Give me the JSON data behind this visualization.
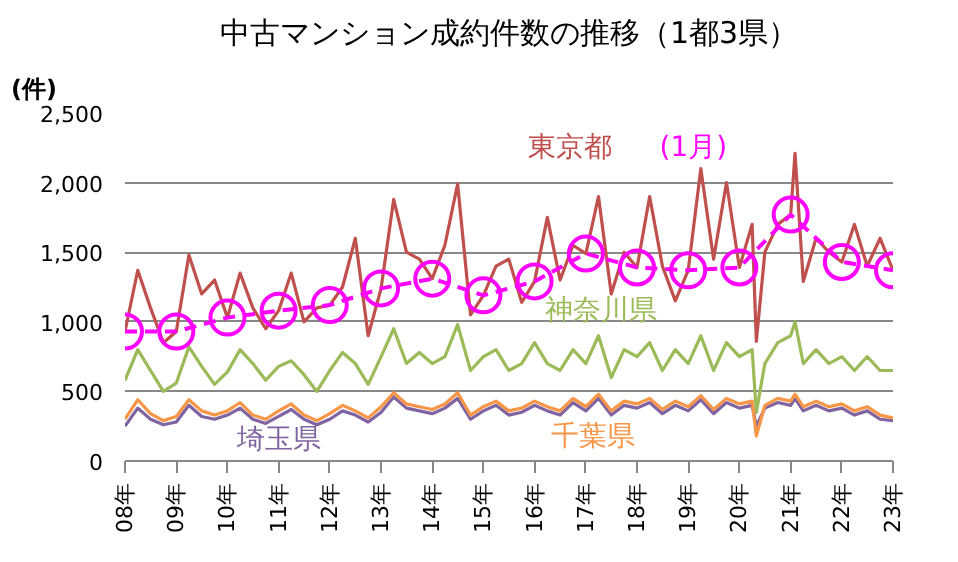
{
  "chart_data": {
    "type": "line",
    "title": "中古マンション成約件数の推移（1都3県）",
    "ylabel": "(件)",
    "x": [
      "2008-01",
      "2008-04",
      "2008-07",
      "2008-10",
      "2009-01",
      "2009-04",
      "2009-07",
      "2009-10",
      "2010-01",
      "2010-04",
      "2010-07",
      "2010-10",
      "2011-01",
      "2011-04",
      "2011-07",
      "2011-10",
      "2012-01",
      "2012-04",
      "2012-07",
      "2012-10",
      "2013-01",
      "2013-04",
      "2013-07",
      "2013-10",
      "2014-01",
      "2014-04",
      "2014-07",
      "2014-10",
      "2015-01",
      "2015-04",
      "2015-07",
      "2015-10",
      "2016-01",
      "2016-04",
      "2016-07",
      "2016-10",
      "2017-01",
      "2017-04",
      "2017-07",
      "2017-10",
      "2018-01",
      "2018-04",
      "2018-07",
      "2018-10",
      "2019-01",
      "2019-04",
      "2019-07",
      "2019-10",
      "2020-01",
      "2020-04",
      "2020-05",
      "2020-07",
      "2020-10",
      "2021-01",
      "2021-02",
      "2021-04",
      "2021-07",
      "2021-10",
      "2022-01",
      "2022-04",
      "2022-07",
      "2022-10",
      "2023-01"
    ],
    "series": [
      {
        "name": "東京都",
        "color": "#c0504d",
        "values": [
          930,
          1370,
          1100,
          850,
          930,
          1480,
          1200,
          1300,
          1030,
          1350,
          1100,
          950,
          1080,
          1350,
          1000,
          1100,
          1120,
          1250,
          1600,
          900,
          1240,
          1880,
          1500,
          1450,
          1310,
          1550,
          1990,
          1050,
          1190,
          1400,
          1450,
          1140,
          1290,
          1750,
          1300,
          1550,
          1490,
          1900,
          1200,
          1500,
          1390,
          1900,
          1400,
          1150,
          1370,
          2100,
          1450,
          2000,
          1390,
          1700,
          860,
          1500,
          1700,
          1770,
          2210,
          1290,
          1600,
          1500,
          1430,
          1700,
          1400,
          1600,
          1370
        ]
      },
      {
        "name": "神奈川県",
        "color": "#9bbb59",
        "values": [
          580,
          800,
          650,
          500,
          560,
          820,
          680,
          550,
          640,
          800,
          700,
          580,
          680,
          720,
          620,
          500,
          650,
          780,
          700,
          550,
          750,
          950,
          700,
          780,
          700,
          750,
          980,
          650,
          750,
          800,
          650,
          700,
          850,
          700,
          650,
          800,
          700,
          900,
          600,
          800,
          750,
          850,
          650,
          800,
          700,
          900,
          650,
          850,
          750,
          800,
          350,
          700,
          850,
          900,
          1000,
          700,
          800,
          700,
          750,
          650,
          750,
          650,
          650
        ]
      },
      {
        "name": "埼玉県",
        "color": "#8064a2",
        "values": [
          250,
          380,
          300,
          260,
          280,
          400,
          320,
          300,
          330,
          380,
          300,
          270,
          320,
          370,
          300,
          260,
          300,
          360,
          330,
          280,
          350,
          460,
          380,
          360,
          340,
          380,
          450,
          300,
          360,
          400,
          330,
          350,
          400,
          360,
          330,
          420,
          360,
          450,
          330,
          400,
          380,
          420,
          340,
          400,
          360,
          440,
          340,
          420,
          380,
          400,
          250,
          380,
          420,
          400,
          450,
          360,
          400,
          360,
          380,
          330,
          360,
          300,
          290
        ]
      },
      {
        "name": "千葉県",
        "color": "#f79646",
        "values": [
          300,
          440,
          340,
          290,
          320,
          440,
          360,
          330,
          360,
          420,
          330,
          300,
          360,
          410,
          330,
          290,
          340,
          400,
          360,
          310,
          390,
          490,
          410,
          390,
          370,
          410,
          490,
          330,
          390,
          430,
          360,
          380,
          430,
          390,
          360,
          450,
          390,
          480,
          360,
          430,
          410,
          450,
          370,
          430,
          390,
          470,
          370,
          450,
          410,
          430,
          180,
          400,
          450,
          430,
          480,
          390,
          430,
          390,
          410,
          360,
          390,
          330,
          310
        ]
      },
      {
        "name": "(1月)",
        "color": "#ff00ff",
        "marker": "circle",
        "line_style": "dashed",
        "x": [
          "2008-01",
          "2009-01",
          "2010-01",
          "2011-01",
          "2012-01",
          "2013-01",
          "2014-01",
          "2015-01",
          "2016-01",
          "2017-01",
          "2018-01",
          "2019-01",
          "2020-01",
          "2021-01",
          "2022-01",
          "2023-01"
        ],
        "values": [
          930,
          930,
          1030,
          1080,
          1120,
          1240,
          1310,
          1190,
          1290,
          1490,
          1390,
          1370,
          1390,
          1770,
          1430,
          1370
        ]
      }
    ],
    "xlim": [
      "2008-01",
      "2023-01"
    ],
    "xticks": [
      {
        "value": "2008-01",
        "label": "08年"
      },
      {
        "value": "2009-01",
        "label": "09年"
      },
      {
        "value": "2010-01",
        "label": "10年"
      },
      {
        "value": "2011-01",
        "label": "11年"
      },
      {
        "value": "2012-01",
        "label": "12年"
      },
      {
        "value": "2013-01",
        "label": "13年"
      },
      {
        "value": "2014-01",
        "label": "14年"
      },
      {
        "value": "2015-01",
        "label": "15年"
      },
      {
        "value": "2016-01",
        "label": "16年"
      },
      {
        "value": "2017-01",
        "label": "17年"
      },
      {
        "value": "2018-01",
        "label": "18年"
      },
      {
        "value": "2019-01",
        "label": "19年"
      },
      {
        "value": "2020-01",
        "label": "20年"
      },
      {
        "value": "2021-01",
        "label": "21年"
      },
      {
        "value": "2022-01",
        "label": "22年"
      },
      {
        "value": "2023-01",
        "label": "23年"
      }
    ],
    "ylim": [
      0,
      2500
    ],
    "yticks": [
      0,
      500,
      {
        "value": 1000,
        "label": "1,000"
      },
      {
        "value": 1500,
        "label": "1,500"
      },
      {
        "value": 2000,
        "label": "2,000"
      },
      {
        "value": 2500,
        "label": "2,500"
      }
    ],
    "grid": "y",
    "marker": "none",
    "line_style": "solid"
  }
}
